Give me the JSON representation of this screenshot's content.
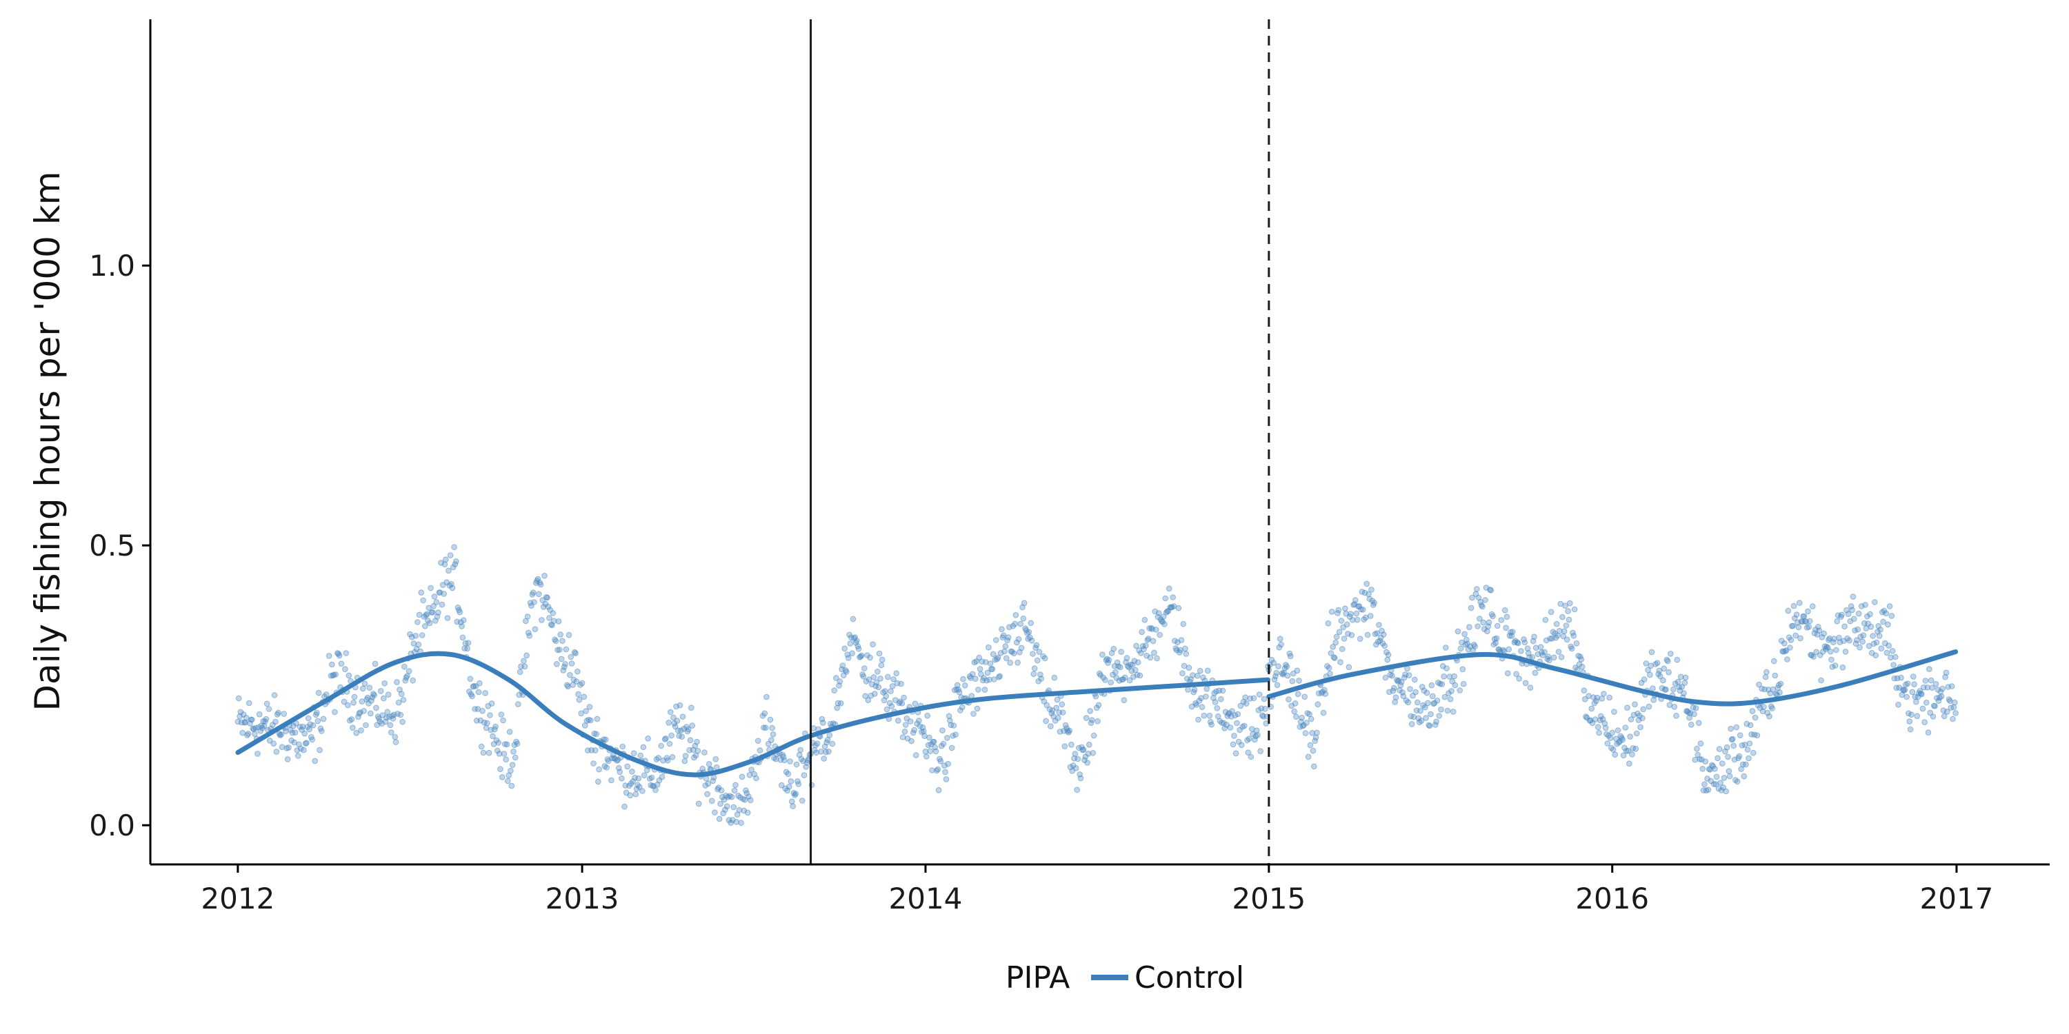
{
  "chart_data": {
    "type": "scatter",
    "title": "",
    "xlabel": "",
    "ylabel": "Daily fishing hours per '000 km",
    "x_ticks": [
      "2012",
      "2013",
      "2014",
      "2015",
      "2016",
      "2017"
    ],
    "y_ticks": [
      "0.0",
      "0.5",
      "1.0"
    ],
    "xlim": [
      "2011-09-30",
      "2017-04-10"
    ],
    "ylim": [
      -0.07,
      1.44
    ],
    "grid": false,
    "legend": {
      "position": "bottom",
      "title": "PIPA",
      "entries": [
        "Control"
      ]
    },
    "vertical_lines": [
      {
        "date": "2013-09-01",
        "style": "solid"
      },
      {
        "date": "2015-01-01",
        "style": "dashed"
      }
    ],
    "colors": {
      "series": "#3a7ebb",
      "points": "#4a88c0",
      "axis": "#000000"
    },
    "series": [
      {
        "name": "Control",
        "kind": "daily points",
        "x_start": "2012-01-01",
        "x_end": "2016-12-31",
        "cycle_points": [
          [
            "2012-01",
            0.18
          ],
          [
            "2012-02",
            0.17
          ],
          [
            "2012-03",
            0.15
          ],
          [
            "2012-04",
            0.26
          ],
          [
            "2012-05",
            0.22
          ],
          [
            "2012-06",
            0.2
          ],
          [
            "2012-07",
            0.35
          ],
          [
            "2012-08",
            0.44
          ],
          [
            "2012-09",
            0.21
          ],
          [
            "2012-10",
            0.12
          ],
          [
            "2012-11",
            0.42
          ],
          [
            "2012-12",
            0.3
          ],
          [
            "2013-01",
            0.15
          ],
          [
            "2013-02",
            0.1
          ],
          [
            "2013-03",
            0.09
          ],
          [
            "2013-04",
            0.17
          ],
          [
            "2013-05",
            0.09
          ],
          [
            "2013-06",
            0.02
          ],
          [
            "2013-07",
            0.16
          ],
          [
            "2013-08",
            0.08
          ],
          [
            "2013-09",
            0.15
          ],
          [
            "2013-10",
            0.32
          ],
          [
            "2013-11",
            0.25
          ],
          [
            "2013-12",
            0.19
          ],
          [
            "2014-01",
            0.12
          ],
          [
            "2014-02",
            0.24
          ],
          [
            "2014-03",
            0.28
          ],
          [
            "2014-04",
            0.35
          ],
          [
            "2014-05",
            0.21
          ],
          [
            "2014-06",
            0.11
          ],
          [
            "2014-07",
            0.27
          ],
          [
            "2014-08",
            0.3
          ],
          [
            "2014-09",
            0.38
          ],
          [
            "2014-10",
            0.25
          ],
          [
            "2014-11",
            0.2
          ],
          [
            "2014-12",
            0.17
          ],
          [
            "2015-01",
            0.29
          ],
          [
            "2015-02",
            0.16
          ],
          [
            "2015-03",
            0.34
          ],
          [
            "2015-04",
            0.39
          ],
          [
            "2015-05",
            0.26
          ],
          [
            "2015-06",
            0.21
          ],
          [
            "2015-07",
            0.27
          ],
          [
            "2015-08",
            0.38
          ],
          [
            "2015-09",
            0.32
          ],
          [
            "2015-10",
            0.3
          ],
          [
            "2015-11",
            0.36
          ],
          [
            "2015-12",
            0.2
          ],
          [
            "2016-01",
            0.15
          ],
          [
            "2016-02",
            0.26
          ],
          [
            "2016-03",
            0.24
          ],
          [
            "2016-04",
            0.08
          ],
          [
            "2016-05",
            0.13
          ],
          [
            "2016-06",
            0.22
          ],
          [
            "2016-07",
            0.37
          ],
          [
            "2016-08",
            0.32
          ],
          [
            "2016-09",
            0.36
          ],
          [
            "2016-10",
            0.34
          ],
          [
            "2016-11",
            0.22
          ],
          [
            "2016-12",
            0.23
          ]
        ]
      },
      {
        "name": "Control",
        "kind": "smooth trend",
        "segments": [
          {
            "points": [
              [
                "2012-01-01",
                0.13
              ],
              [
                "2012-04-01",
                0.22
              ],
              [
                "2012-06-15",
                0.29
              ],
              [
                "2012-08-15",
                0.305
              ],
              [
                "2012-10-15",
                0.26
              ],
              [
                "2012-12-15",
                0.18
              ],
              [
                "2013-03-01",
                0.115
              ],
              [
                "2013-05-01",
                0.09
              ],
              [
                "2013-07-01",
                0.115
              ],
              [
                "2013-09-01",
                0.16
              ],
              [
                "2013-12-01",
                0.2
              ],
              [
                "2014-03-01",
                0.225
              ],
              [
                "2014-07-01",
                0.24
              ],
              [
                "2014-10-01",
                0.25
              ],
              [
                "2014-12-31",
                0.26
              ]
            ]
          },
          {
            "points": [
              [
                "2015-01-01",
                0.23
              ],
              [
                "2015-04-01",
                0.27
              ],
              [
                "2015-08-15",
                0.305
              ],
              [
                "2015-11-01",
                0.28
              ],
              [
                "2016-02-01",
                0.24
              ],
              [
                "2016-04-01",
                0.22
              ],
              [
                "2016-06-01",
                0.22
              ],
              [
                "2016-09-01",
                0.25
              ],
              [
                "2016-12-31",
                0.31
              ]
            ]
          }
        ]
      }
    ]
  }
}
